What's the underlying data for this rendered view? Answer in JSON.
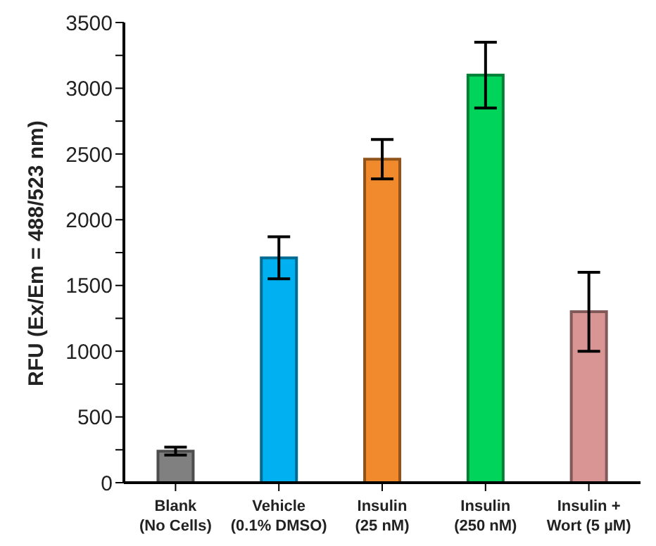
{
  "chart_data": {
    "type": "bar",
    "ylabel": "RFU (Ex/Em = 488/523 nm)",
    "categories": [
      "Blank\n(No Cells)",
      "Vehicle\n(0.1% DMSO)",
      "Insulin\n(25 nM)",
      "Insulin\n(250 nM)",
      "Insulin +\nWort (5 µM)"
    ],
    "values": [
      240,
      1710,
      2460,
      3100,
      1300
    ],
    "errors": [
      30,
      160,
      150,
      250,
      300
    ],
    "colors": [
      "#808080",
      "#00b0f0",
      "#f08a2c",
      "#00d45a",
      "#d99594"
    ],
    "ylim": [
      0,
      3500
    ],
    "yticks": [
      0,
      {
        "value": 250,
        "label": null
      },
      500,
      {
        "value": 750,
        "label": null
      },
      1000,
      {
        "value": 1250,
        "label": null
      },
      1500,
      {
        "value": 1750,
        "label": null
      },
      2000,
      {
        "value": 2250,
        "label": null
      },
      2500,
      {
        "value": 2750,
        "label": null
      },
      3000,
      {
        "value": 3250,
        "label": null
      },
      3500
    ],
    "grid": false,
    "legend": false
  }
}
